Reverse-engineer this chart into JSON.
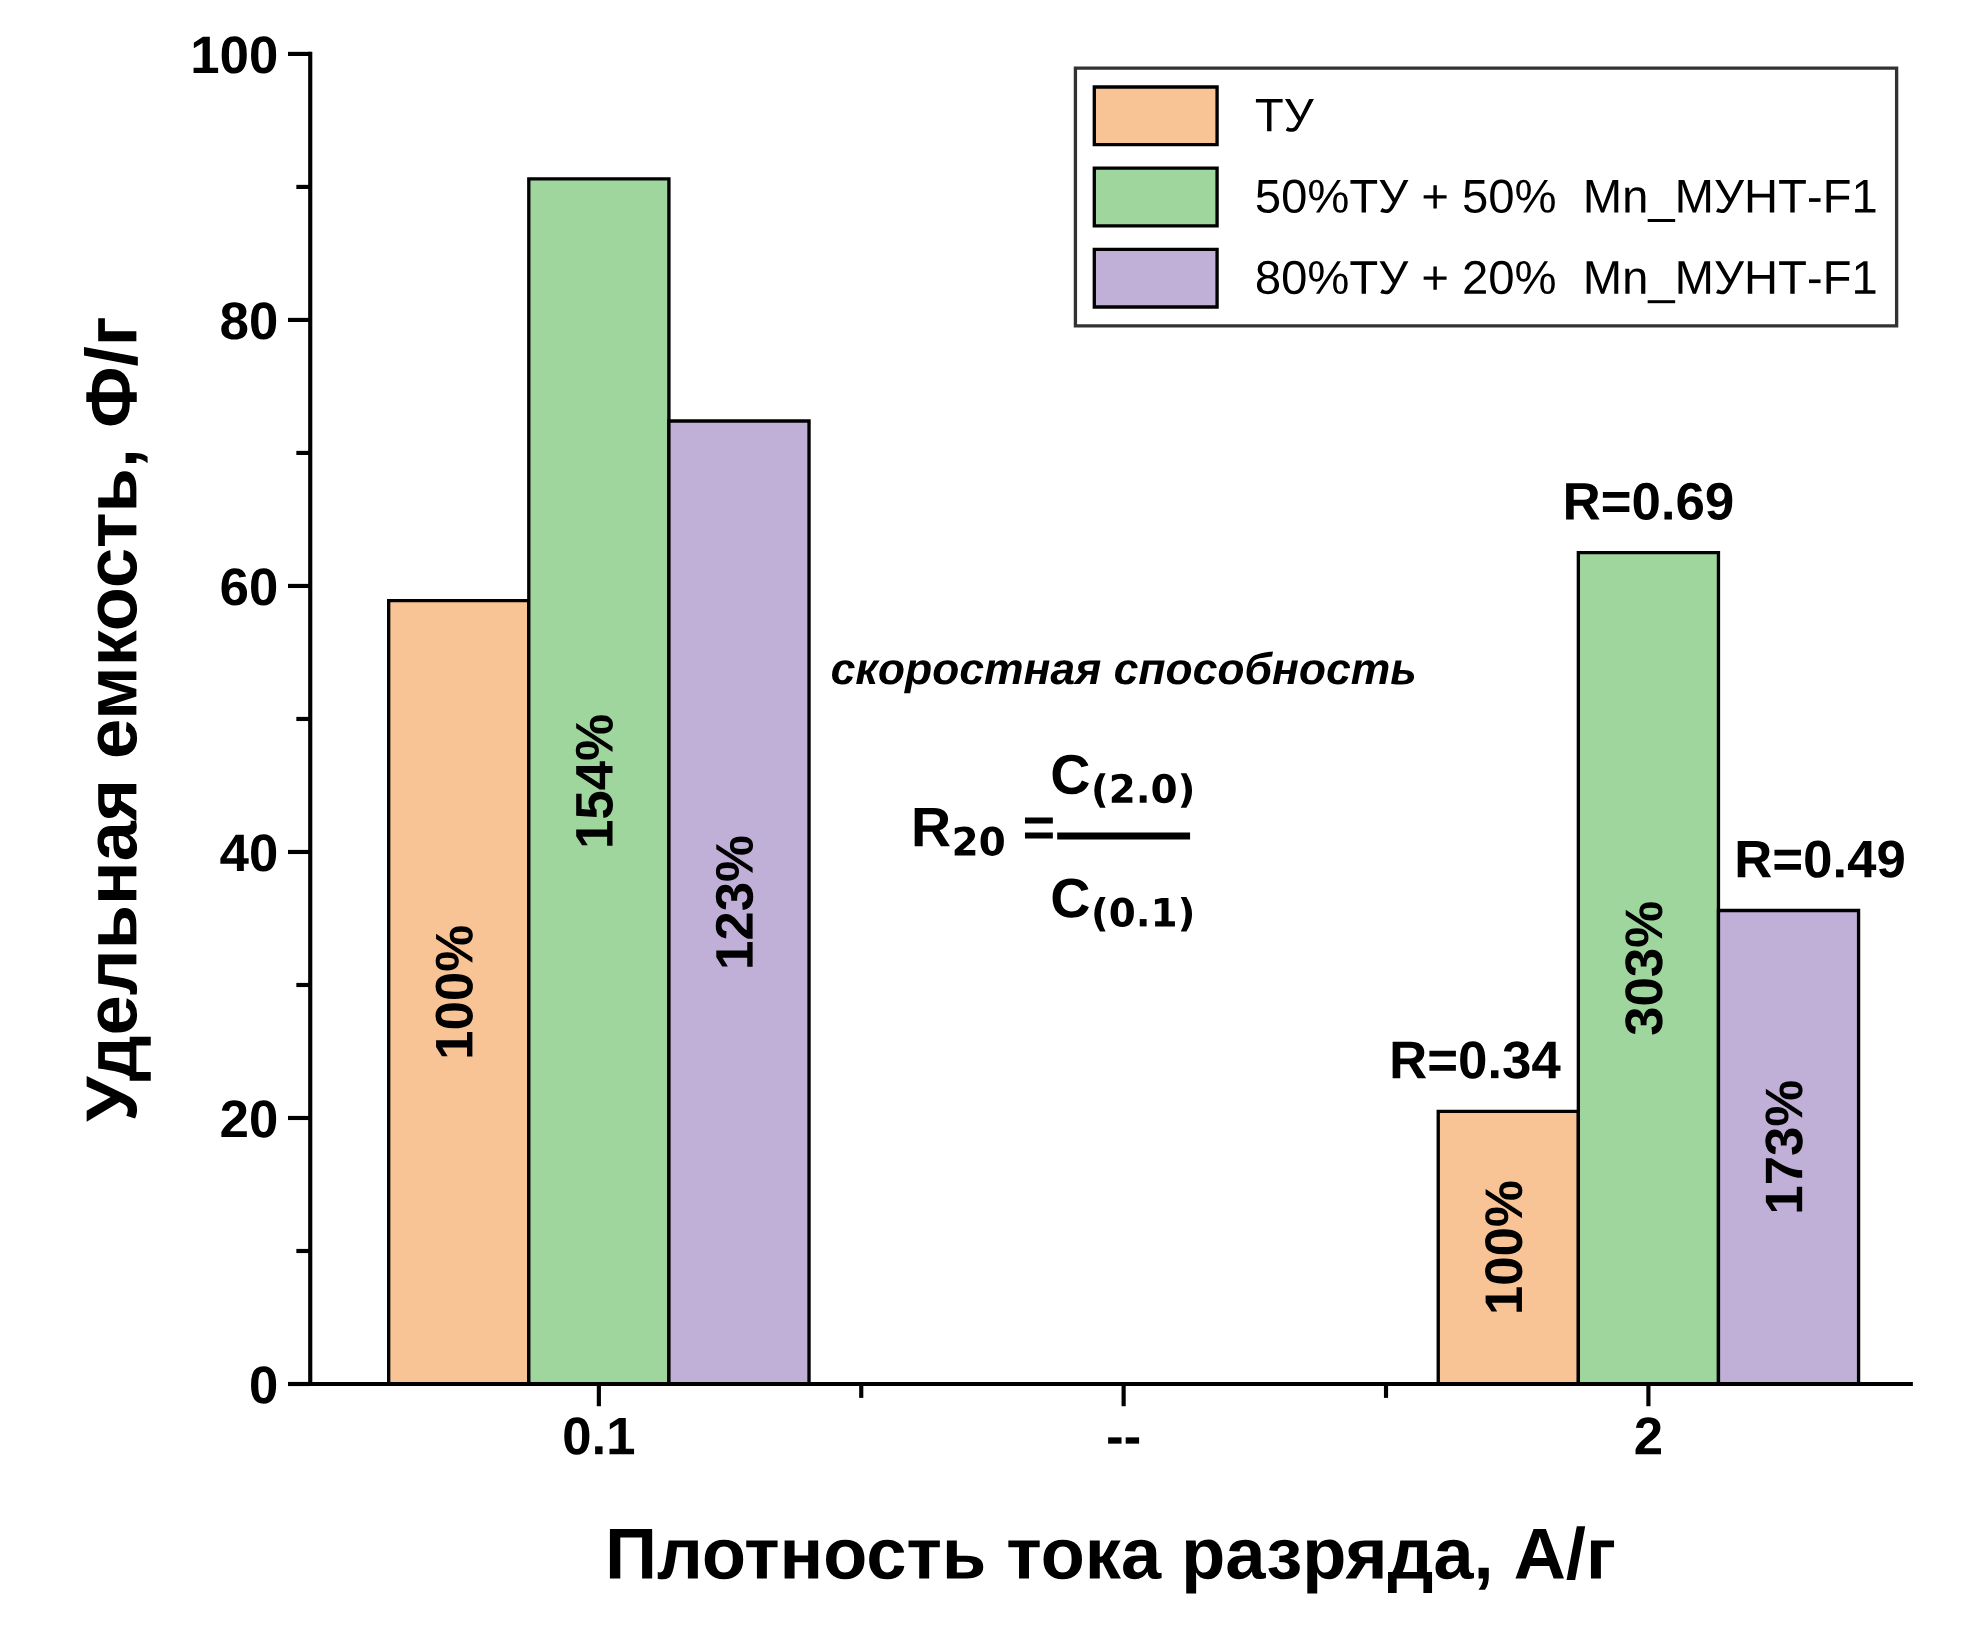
{
  "chart_data": {
    "type": "bar",
    "categories": [
      "0.1",
      "--",
      "2"
    ],
    "series": [
      {
        "name": "ТУ",
        "color": "#f9c495",
        "values": [
          58.9,
          null,
          20.5
        ]
      },
      {
        "name": "50%ТУ + 50%  Mn_МУНТ-F1",
        "color": "#9fd69d",
        "values": [
          90.6,
          null,
          62.5
        ]
      },
      {
        "name": "80%ТУ + 20%  Mn_МУНТ-F1",
        "color": "#c0b0d8",
        "values": [
          72.4,
          null,
          35.6
        ]
      }
    ],
    "xlabel": "Плотность тока разряда, А/г",
    "ylabel": "Удельная емкость, Ф/г",
    "ylim": [
      0,
      100
    ],
    "yticks": [
      0,
      20,
      40,
      60,
      80,
      100
    ],
    "annotations": [
      "100%",
      "154%",
      "123%",
      "100%",
      "303%",
      "173%",
      "R=0.34",
      "R=0.69",
      "R=0.49",
      "скоростная способность",
      "R$_{20}$ =",
      "C$_{(2.0)}$",
      "C$_{(0.1)}$"
    ],
    "legend": "top right",
    "grid": false
  }
}
